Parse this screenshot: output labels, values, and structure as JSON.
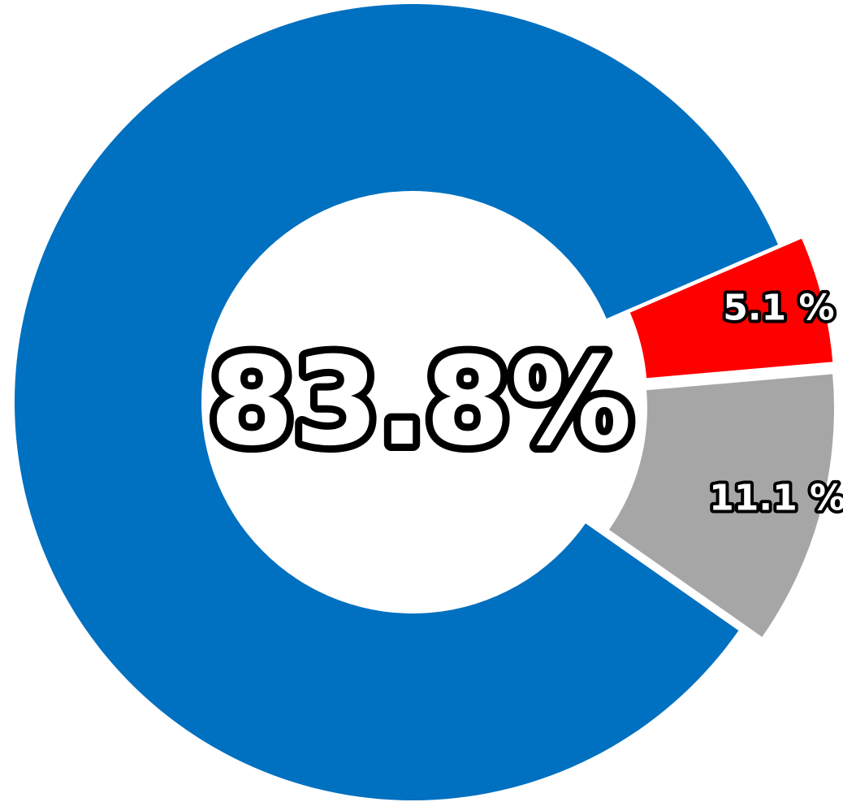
{
  "chart_data": {
    "type": "donut",
    "categories": [
      null,
      null,
      null
    ],
    "values": [
      83.8,
      5.1,
      11.1
    ],
    "value_labels": [
      "83.8%",
      "5.1 %",
      "11.1 %"
    ],
    "colors": [
      "#0070c0",
      "#ff0000",
      "#a6a6a6"
    ]
  }
}
